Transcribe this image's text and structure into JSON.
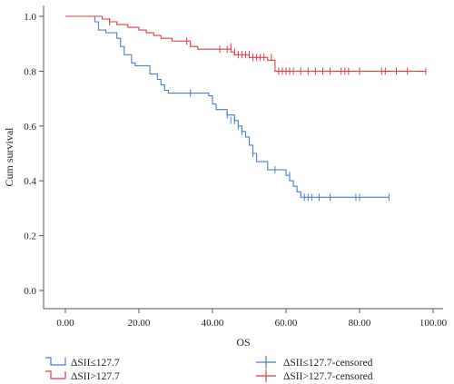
{
  "chart_data": {
    "type": "line",
    "xlabel": "OS",
    "ylabel": "Cum survival",
    "xlim": [
      0,
      105
    ],
    "ylim": [
      0,
      1.0
    ],
    "x_ticks": [
      "0.00",
      "20.00",
      "40.00",
      "60.00",
      "80.00",
      "100.00"
    ],
    "y_ticks": [
      "0.0",
      "0.2",
      "0.4",
      "0.6",
      "0.8",
      "1.0"
    ],
    "grid": false,
    "legend_position": "bottom",
    "colors": {
      "low": "#4a7fc0",
      "high": "#e03c46",
      "axis": "#555555"
    },
    "series": [
      {
        "name": "ΔSII≤127.7",
        "color": "#4a7fc0",
        "steps": [
          [
            0,
            1.0
          ],
          [
            8,
            0.98
          ],
          [
            9,
            0.95
          ],
          [
            11,
            0.94
          ],
          [
            14,
            0.92
          ],
          [
            15,
            0.89
          ],
          [
            16,
            0.86
          ],
          [
            18,
            0.83
          ],
          [
            19,
            0.82
          ],
          [
            23,
            0.79
          ],
          [
            25,
            0.77
          ],
          [
            26,
            0.75
          ],
          [
            27,
            0.73
          ],
          [
            28,
            0.72
          ],
          [
            39,
            0.71
          ],
          [
            40,
            0.68
          ],
          [
            41,
            0.66
          ],
          [
            44,
            0.64
          ],
          [
            46,
            0.62
          ],
          [
            47,
            0.6
          ],
          [
            48,
            0.58
          ],
          [
            49,
            0.56
          ],
          [
            50,
            0.53
          ],
          [
            51,
            0.5
          ],
          [
            52,
            0.47
          ],
          [
            55,
            0.44
          ],
          [
            60,
            0.42
          ],
          [
            61,
            0.4
          ],
          [
            62,
            0.38
          ],
          [
            63,
            0.36
          ],
          [
            64,
            0.34
          ],
          [
            88,
            0.34
          ]
        ],
        "censored": [
          [
            34,
            0.72
          ],
          [
            44,
            0.64
          ],
          [
            45,
            0.62
          ],
          [
            46,
            0.62
          ],
          [
            47,
            0.6
          ],
          [
            48,
            0.58
          ],
          [
            51,
            0.5
          ],
          [
            57,
            0.44
          ],
          [
            61,
            0.42
          ],
          [
            65,
            0.34
          ],
          [
            66,
            0.34
          ],
          [
            67,
            0.34
          ],
          [
            69,
            0.34
          ],
          [
            72,
            0.34
          ],
          [
            79,
            0.34
          ],
          [
            80,
            0.34
          ],
          [
            88,
            0.34
          ]
        ]
      },
      {
        "name": "ΔSII>127.7",
        "color": "#e03c46",
        "steps": [
          [
            0,
            1.0
          ],
          [
            10,
            0.99
          ],
          [
            12,
            0.98
          ],
          [
            14,
            0.97
          ],
          [
            17,
            0.96
          ],
          [
            20,
            0.95
          ],
          [
            22,
            0.94
          ],
          [
            24,
            0.93
          ],
          [
            26,
            0.92
          ],
          [
            29,
            0.91
          ],
          [
            34,
            0.89
          ],
          [
            36,
            0.88
          ],
          [
            45,
            0.87
          ],
          [
            46,
            0.86
          ],
          [
            50,
            0.85
          ],
          [
            55,
            0.84
          ],
          [
            57,
            0.8
          ],
          [
            98,
            0.8
          ]
        ],
        "censored": [
          [
            12,
            0.98
          ],
          [
            33,
            0.91
          ],
          [
            42,
            0.88
          ],
          [
            44,
            0.88
          ],
          [
            45,
            0.89
          ],
          [
            46,
            0.87
          ],
          [
            47,
            0.86
          ],
          [
            48,
            0.86
          ],
          [
            49,
            0.86
          ],
          [
            50,
            0.86
          ],
          [
            51,
            0.85
          ],
          [
            52,
            0.85
          ],
          [
            53,
            0.85
          ],
          [
            54,
            0.85
          ],
          [
            56,
            0.85
          ],
          [
            58,
            0.8
          ],
          [
            59,
            0.8
          ],
          [
            60,
            0.8
          ],
          [
            61,
            0.8
          ],
          [
            62,
            0.8
          ],
          [
            64,
            0.8
          ],
          [
            66,
            0.8
          ],
          [
            68,
            0.8
          ],
          [
            70,
            0.8
          ],
          [
            72,
            0.8
          ],
          [
            75,
            0.8
          ],
          [
            76,
            0.8
          ],
          [
            77,
            0.8
          ],
          [
            80,
            0.8
          ],
          [
            86,
            0.8
          ],
          [
            87,
            0.8
          ],
          [
            90,
            0.8
          ],
          [
            93,
            0.8
          ],
          [
            98,
            0.8
          ]
        ]
      }
    ],
    "legend": [
      {
        "label": "ΔSII≤127.7",
        "kind": "box",
        "color": "#4a7fc0"
      },
      {
        "label": "ΔSII>127.7",
        "kind": "box",
        "color": "#e03c46"
      },
      {
        "label": "ΔSII≤127.7-censored",
        "kind": "cross",
        "color": "#4a7fc0"
      },
      {
        "label": "ΔSII>127.7-censored",
        "kind": "cross",
        "color": "#e03c46"
      }
    ]
  }
}
